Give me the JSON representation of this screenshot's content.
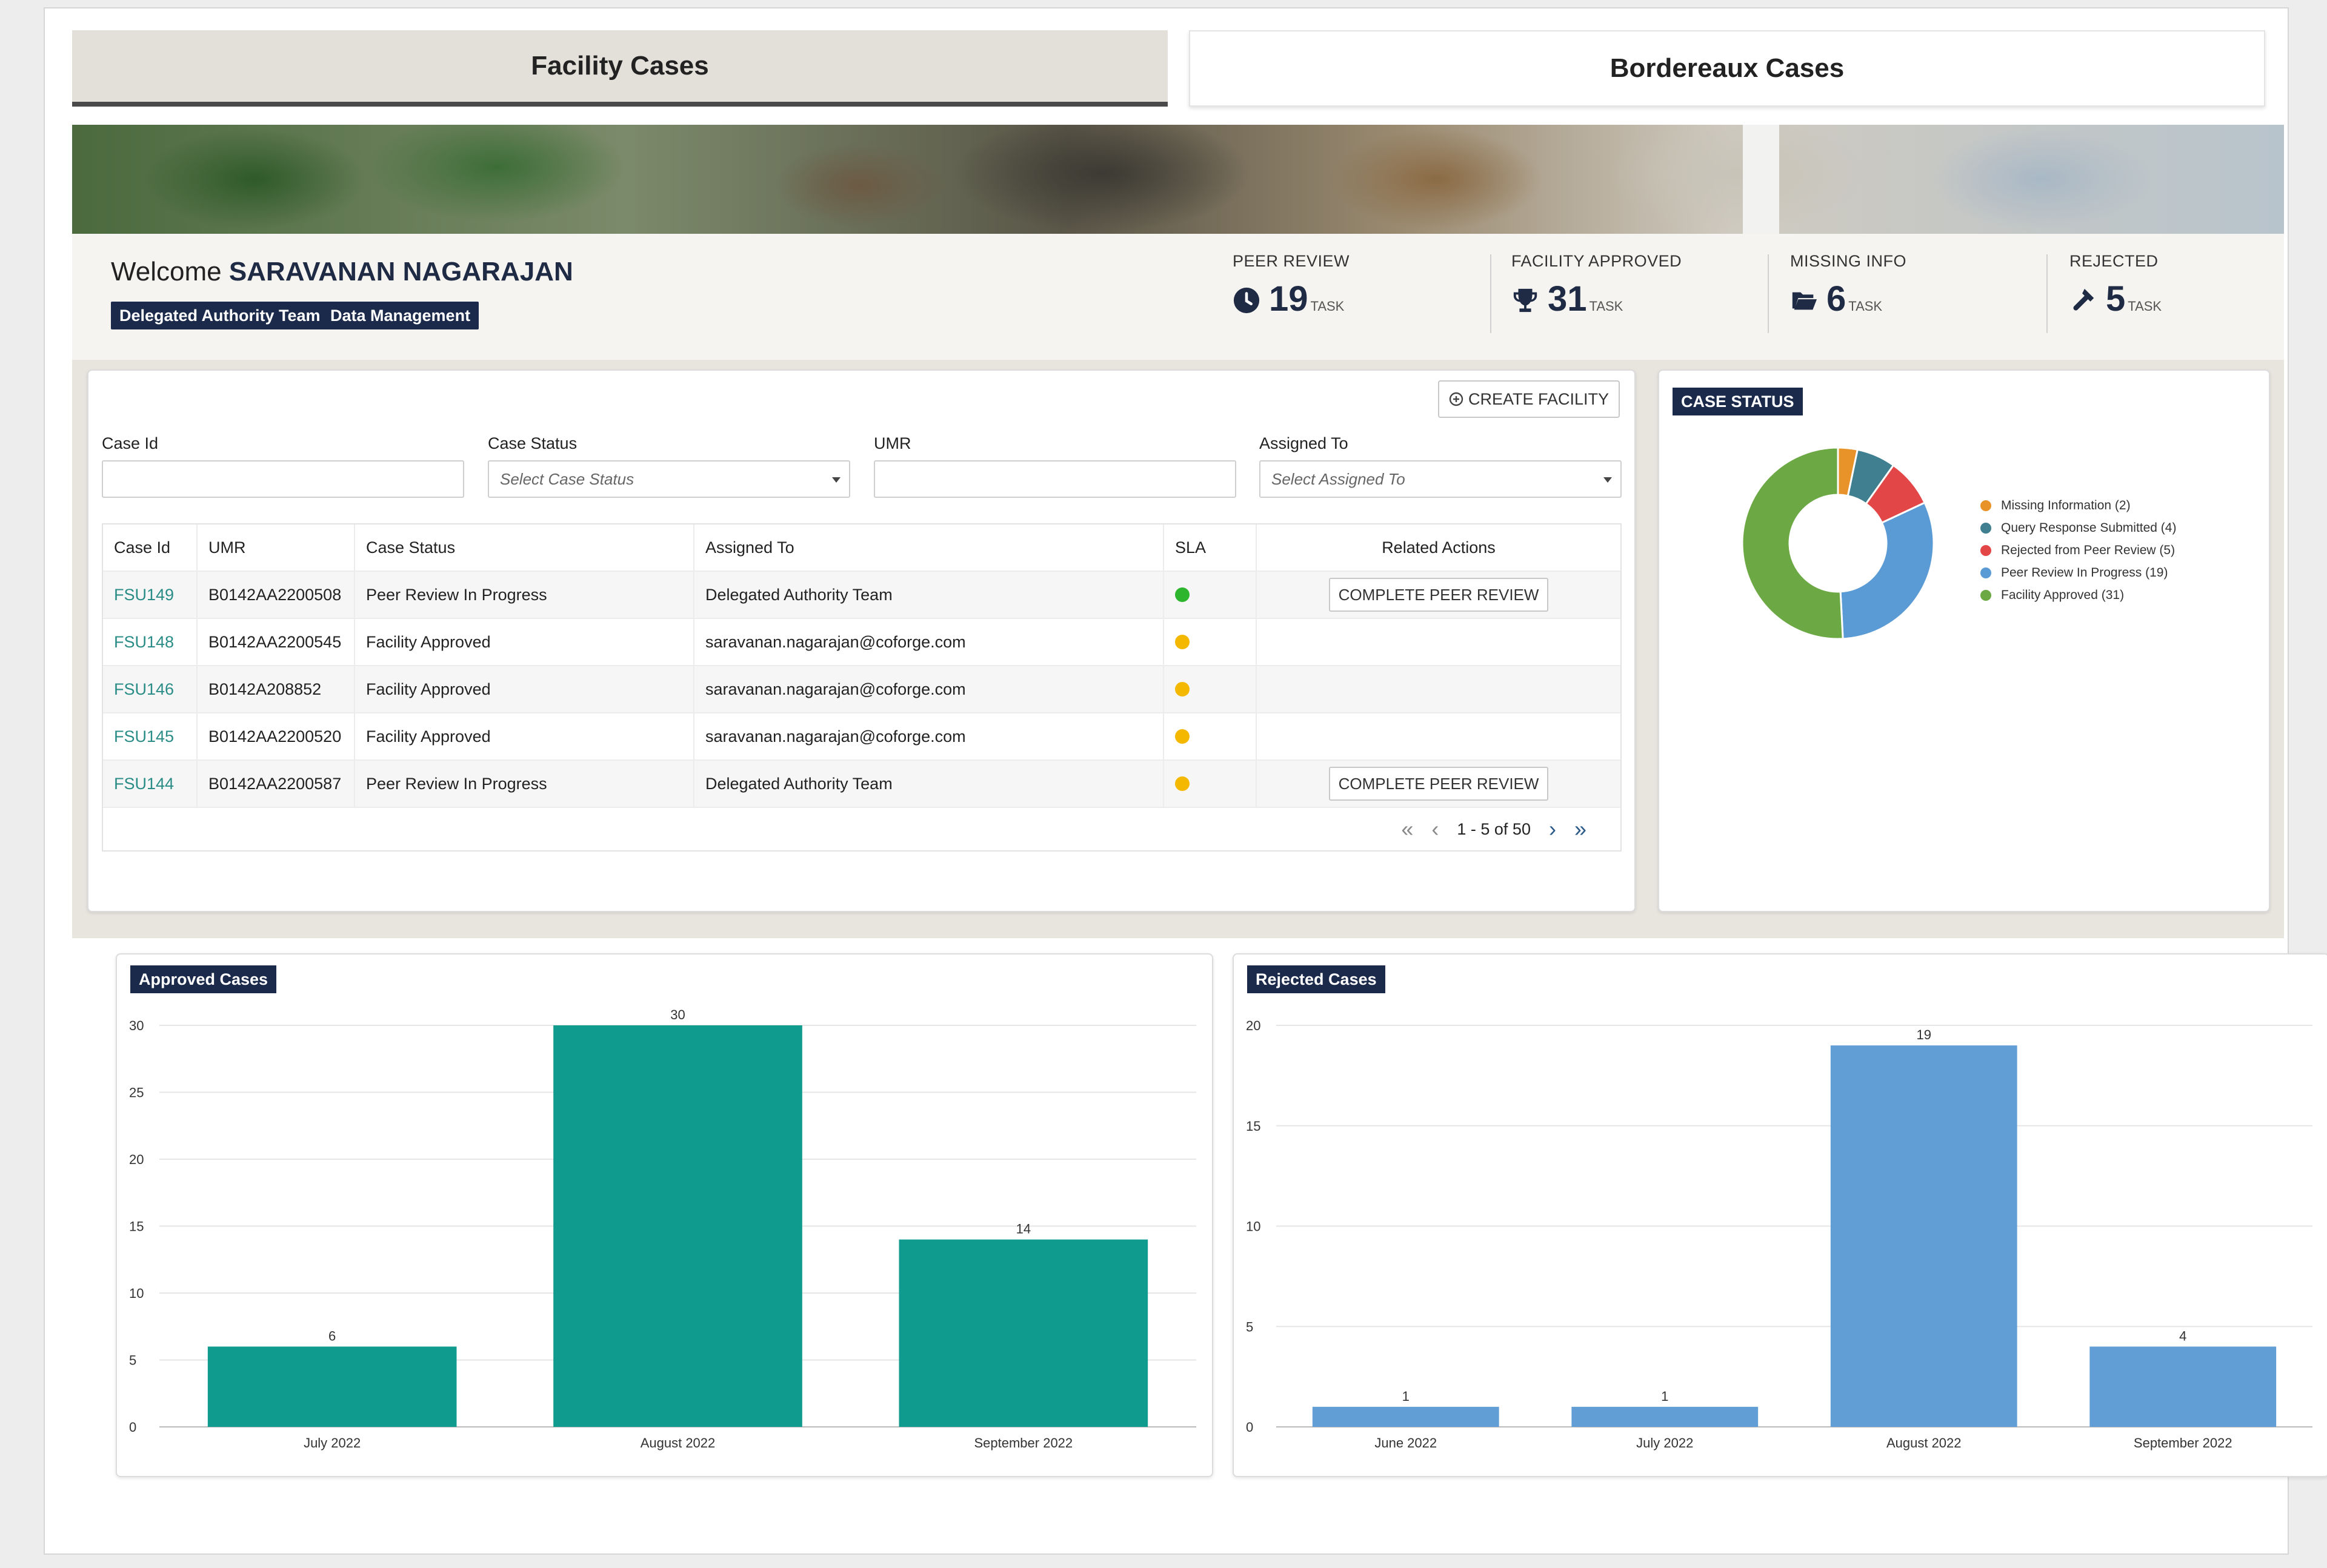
{
  "tabs": {
    "facility": "Facility Cases",
    "bordereaux": "Bordereaux Cases"
  },
  "welcome": {
    "prefix": "Welcome",
    "name": "SARAVANAN NAGARAJAN",
    "badges": [
      "Delegated Authority Team",
      "Data Management"
    ]
  },
  "stats": [
    {
      "label": "PEER REVIEW",
      "value": "19",
      "unit": "TASK",
      "icon": "clock-icon"
    },
    {
      "label": "FACILITY APPROVED",
      "value": "31",
      "unit": "TASK",
      "icon": "trophy-icon"
    },
    {
      "label": "MISSING INFO",
      "value": "6",
      "unit": "TASK",
      "icon": "folder-open-icon"
    },
    {
      "label": "REJECTED",
      "value": "5",
      "unit": "TASK",
      "icon": "gavel-icon"
    }
  ],
  "filters": {
    "create_button": "CREATE FACILITY",
    "case_id_label": "Case Id",
    "case_status_label": "Case Status",
    "case_status_placeholder": "Select Case Status",
    "umr_label": "UMR",
    "assigned_to_label": "Assigned To",
    "assigned_to_placeholder": "Select Assigned To"
  },
  "table": {
    "headers": [
      "Case Id",
      "UMR",
      "Case Status",
      "Assigned To",
      "SLA",
      "Related Actions"
    ],
    "rows": [
      {
        "case_id": "FSU149",
        "umr": "B0142AA2200508",
        "status": "Peer Review In Progress",
        "assigned": "Delegated Authority Team",
        "sla_color": "#2db52d",
        "action": "COMPLETE PEER REVIEW"
      },
      {
        "case_id": "FSU148",
        "umr": "B0142AA2200545",
        "status": "Facility Approved",
        "assigned": "saravanan.nagarajan@coforge.com",
        "sla_color": "#f5b800",
        "action": ""
      },
      {
        "case_id": "FSU146",
        "umr": "B0142A208852",
        "status": "Facility Approved",
        "assigned": "saravanan.nagarajan@coforge.com",
        "sla_color": "#f5b800",
        "action": ""
      },
      {
        "case_id": "FSU145",
        "umr": "B0142AA2200520",
        "status": "Facility Approved",
        "assigned": "saravanan.nagarajan@coforge.com",
        "sla_color": "#f5b800",
        "action": ""
      },
      {
        "case_id": "FSU144",
        "umr": "B0142AA2200587",
        "status": "Peer Review In Progress",
        "assigned": "Delegated Authority Team",
        "sla_color": "#f5b800",
        "action": "COMPLETE PEER REVIEW"
      }
    ],
    "pagination": "1 - 5 of 50"
  },
  "case_status": {
    "title": "CASE STATUS"
  },
  "chart_data": [
    {
      "type": "pie",
      "donut": true,
      "labels": [
        "Missing Information (2)",
        "Query Response Submitted (4)",
        "Rejected from Peer Review (5)",
        "Peer Review In Progress (19)",
        "Facility Approved (31)"
      ],
      "values": [
        2,
        4,
        5,
        19,
        31
      ],
      "colors": [
        "#e8932a",
        "#3f7f8f",
        "#e24646",
        "#5b9bd5",
        "#6ca843"
      ],
      "legend": "right"
    },
    {
      "type": "bar",
      "title": "Approved Cases",
      "categories": [
        "July 2022",
        "August 2022",
        "September 2022"
      ],
      "values": [
        6,
        30,
        14
      ],
      "ylim": [
        0,
        30
      ],
      "yticks": [
        0,
        5,
        10,
        15,
        20,
        25,
        30
      ],
      "color": "#0f9b8e",
      "grid": true
    },
    {
      "type": "bar",
      "title": "Rejected Cases",
      "categories": [
        "June 2022",
        "July 2022",
        "August 2022",
        "September 2022"
      ],
      "values": [
        1,
        1,
        19,
        4
      ],
      "ylim": [
        0,
        20
      ],
      "yticks": [
        0,
        5,
        10,
        15,
        20
      ],
      "color": "#619ed6",
      "grid": true
    }
  ]
}
